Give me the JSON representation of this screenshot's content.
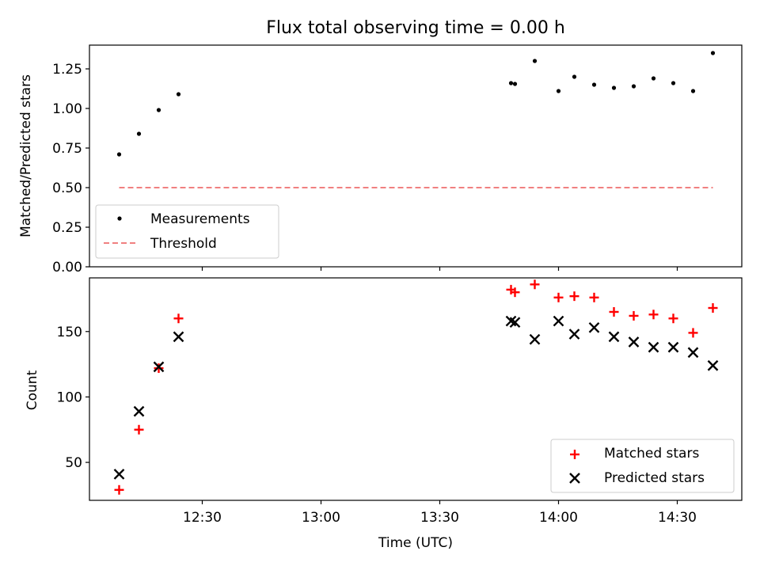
{
  "title": "Flux total observing time = 0.00 h",
  "chart_data": [
    {
      "type": "scatter",
      "title": "Flux total observing time = 0.00 h",
      "xlabel": "",
      "ylabel": "Matched/Predicted stars",
      "ylim": [
        0,
        1.4
      ],
      "yticks": [
        "0.00",
        "0.25",
        "0.50",
        "0.75",
        "1.00",
        "1.25"
      ],
      "legend": {
        "position": "lower-left",
        "entries": [
          "Measurements",
          "Threshold"
        ]
      },
      "series": [
        {
          "name": "Measurements",
          "marker": "dot",
          "color": "#000000",
          "points": [
            [
              "12:09",
              0.71
            ],
            [
              "12:14",
              0.84
            ],
            [
              "12:19",
              0.99
            ],
            [
              "12:24",
              1.09
            ],
            [
              "13:48",
              1.16
            ],
            [
              "13:49",
              1.155
            ],
            [
              "13:54",
              1.3
            ],
            [
              "14:00",
              1.11
            ],
            [
              "14:04",
              1.2
            ],
            [
              "14:09",
              1.15
            ],
            [
              "14:14",
              1.13
            ],
            [
              "14:19",
              1.14
            ],
            [
              "14:24",
              1.19
            ],
            [
              "14:29",
              1.16
            ],
            [
              "14:34",
              1.11
            ],
            [
              "14:39",
              1.35
            ]
          ]
        },
        {
          "name": "Threshold",
          "style": "dashed",
          "color": "#f08080",
          "points": [
            [
              "12:09",
              0.5
            ],
            [
              "14:39",
              0.5
            ]
          ]
        }
      ]
    },
    {
      "type": "scatter",
      "xlabel": "Time (UTC)",
      "ylabel": "Count",
      "ylim": [
        21,
        191
      ],
      "yticks": [
        "50",
        "100",
        "150"
      ],
      "xticks": [
        "12:30",
        "13:00",
        "13:30",
        "14:00",
        "14:30"
      ],
      "legend": {
        "position": "lower-right",
        "entries": [
          "Matched stars",
          "Predicted stars"
        ]
      },
      "series": [
        {
          "name": "Matched stars",
          "marker": "plus",
          "color": "#ff0000",
          "points": [
            [
              "12:09",
              29
            ],
            [
              "12:14",
              75
            ],
            [
              "12:19",
              122
            ],
            [
              "12:24",
              160
            ],
            [
              "13:48",
              182
            ],
            [
              "13:49",
              180
            ],
            [
              "13:54",
              186
            ],
            [
              "14:00",
              176
            ],
            [
              "14:04",
              177
            ],
            [
              "14:09",
              176
            ],
            [
              "14:14",
              165
            ],
            [
              "14:19",
              162
            ],
            [
              "14:24",
              163
            ],
            [
              "14:29",
              160
            ],
            [
              "14:34",
              149
            ],
            [
              "14:39",
              168
            ]
          ]
        },
        {
          "name": "Predicted stars",
          "marker": "x",
          "color": "#000000",
          "points": [
            [
              "12:09",
              41
            ],
            [
              "12:14",
              89
            ],
            [
              "12:19",
              123
            ],
            [
              "12:24",
              146
            ],
            [
              "13:48",
              158
            ],
            [
              "13:49",
              157
            ],
            [
              "13:54",
              144
            ],
            [
              "14:00",
              158
            ],
            [
              "14:04",
              148
            ],
            [
              "14:09",
              153
            ],
            [
              "14:14",
              146
            ],
            [
              "14:19",
              142
            ],
            [
              "14:24",
              138
            ],
            [
              "14:29",
              138
            ],
            [
              "14:34",
              134
            ],
            [
              "14:39",
              124
            ]
          ]
        }
      ]
    }
  ]
}
